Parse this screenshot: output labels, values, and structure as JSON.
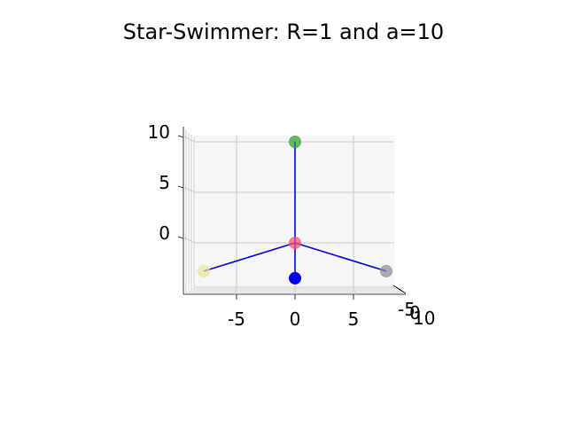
{
  "chart_data": {
    "type": "scatter",
    "title": "Star-Swimmer: R=1 and a=10",
    "view": "3d-projection",
    "grid": true,
    "axes": {
      "x": {
        "ticks": [
          "-5",
          "0",
          "5"
        ],
        "tick_values": [
          -5,
          0,
          5
        ],
        "range": [
          -9.3,
          9.3
        ]
      },
      "z": {
        "ticks": [
          "0",
          "5",
          "10"
        ],
        "tick_values": [
          0,
          5,
          10
        ],
        "range": [
          -3.5,
          11.5
        ]
      },
      "y_depth": {
        "tick_labels_overlapping": [
          "-5",
          "0",
          "10"
        ]
      }
    },
    "points": [
      {
        "name": "top",
        "x": 0,
        "z": 10,
        "color": "#2ca02c"
      },
      {
        "name": "center",
        "x": 0,
        "z": 0,
        "color": "#ff4d6d"
      },
      {
        "name": "left",
        "x": -7.8,
        "z": -2.8,
        "color": "#e8e6a0"
      },
      {
        "name": "right",
        "x": 7.8,
        "z": -2.8,
        "color": "#8c8c99"
      },
      {
        "name": "bottom",
        "x": 0,
        "z": -3.5,
        "color": "#0000ee"
      }
    ],
    "segments": [
      {
        "from": "top",
        "to": "center"
      },
      {
        "from": "center",
        "to": "left"
      },
      {
        "from": "center",
        "to": "right"
      },
      {
        "from": "center",
        "to": "bottom"
      }
    ],
    "line_color": "#0000dd"
  }
}
